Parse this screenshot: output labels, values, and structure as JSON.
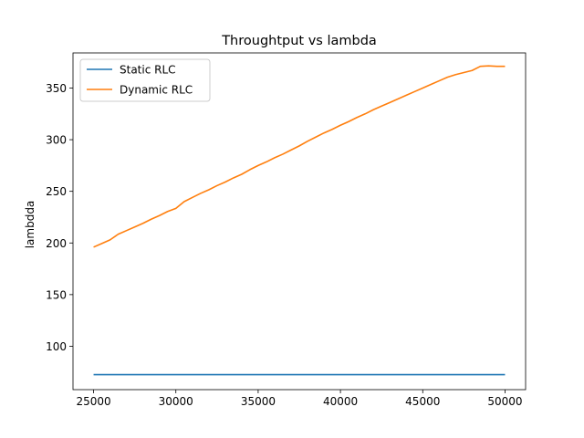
{
  "chart_data": {
    "type": "line",
    "title": "Throughtput vs lambda",
    "xlabel": "",
    "ylabel": "lambdda",
    "xlim": [
      23750,
      51250
    ],
    "ylim": [
      58,
      384
    ],
    "xticks": [
      25000,
      30000,
      35000,
      40000,
      45000,
      50000
    ],
    "yticks": [
      100,
      150,
      200,
      250,
      300,
      350
    ],
    "grid": false,
    "legend": "top-left",
    "series": [
      {
        "name": "Static RLC",
        "color": "#1f77b4",
        "x": [
          25000,
          50000
        ],
        "y": [
          72.5,
          72.5
        ]
      },
      {
        "name": "Dynamic RLC",
        "color": "#ff7f0e",
        "x": [
          25000,
          25500,
          26000,
          26500,
          27000,
          27500,
          28000,
          28500,
          29000,
          29500,
          30000,
          30500,
          31000,
          31500,
          32000,
          32500,
          33000,
          33500,
          34000,
          34500,
          35000,
          35500,
          36000,
          36500,
          37000,
          37500,
          38000,
          38500,
          39000,
          39500,
          40000,
          40500,
          41000,
          41500,
          42000,
          42500,
          43000,
          43500,
          44000,
          44500,
          45000,
          45500,
          46000,
          46500,
          47000,
          47500,
          48000,
          48500,
          49000,
          49500,
          50000
        ],
        "y": [
          196,
          199.5,
          203,
          208.5,
          212,
          215.5,
          219,
          223,
          226.5,
          230.5,
          233.5,
          240,
          244,
          248,
          251.5,
          255.5,
          259,
          263,
          266.5,
          271,
          275,
          278.5,
          282.5,
          286,
          290,
          294,
          298.5,
          302.5,
          306.5,
          310,
          314,
          317.5,
          321.5,
          325,
          329,
          332.5,
          336,
          339.5,
          343,
          346.5,
          350,
          353.5,
          357,
          360.5,
          363,
          365,
          367,
          371,
          371.5,
          371,
          371
        ]
      }
    ]
  }
}
